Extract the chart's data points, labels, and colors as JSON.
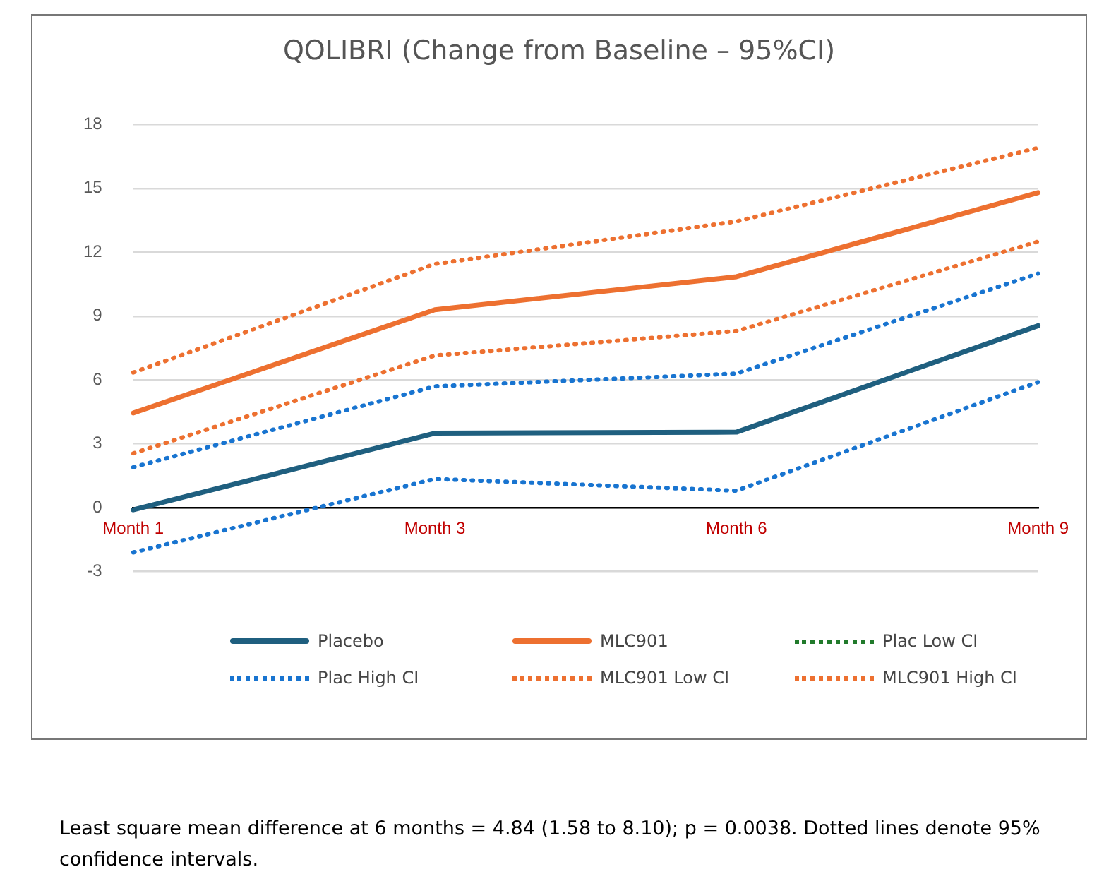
{
  "chart_data": {
    "type": "line",
    "title": "QOLIBRI (Change from Baseline – 95%CI)",
    "categories": [
      "Month 1",
      "Month 3",
      "Month 6",
      "Month 9"
    ],
    "series": [
      {
        "name": "Placebo",
        "color": "#1f5f7f",
        "line_style": "solid",
        "values": [
          -0.1,
          3.5,
          3.55,
          8.55
        ]
      },
      {
        "name": "MLC901",
        "color": "#ed7030",
        "line_style": "solid",
        "values": [
          4.45,
          9.3,
          10.85,
          14.8
        ]
      },
      {
        "name": "Plac Low CI",
        "color": "#217a2b",
        "line_style": "dotted",
        "values": [
          null,
          null,
          null,
          null
        ]
      },
      {
        "name": "Plac High CI",
        "color": "#1874d0",
        "line_style": "dotted",
        "values": [
          1.9,
          5.7,
          6.3,
          11.0
        ]
      },
      {
        "name": "MLC901 Low CI",
        "color": "#ed7030",
        "line_style": "dotted",
        "values": [
          2.55,
          7.15,
          8.3,
          12.5
        ]
      },
      {
        "name": "MLC901 High CI",
        "color": "#ed7030",
        "line_style": "dotted",
        "values": [
          6.35,
          11.45,
          13.45,
          16.9
        ]
      },
      {
        "color": "#1874d0",
        "line_style": "dotted",
        "values": [
          -2.1,
          1.35,
          0.8,
          5.9
        ]
      }
    ],
    "ylim": [
      -3,
      18
    ],
    "yticks": [
      -3,
      0,
      3,
      6,
      9,
      12,
      15,
      18
    ],
    "grid": "y",
    "legend": "bottom",
    "marker": "none",
    "annotations": [
      "Least square mean difference at 6 months = 4.84 (1.58 to 8.10); p = 0.0038. Dotted lines denote 95% confidence intervals."
    ]
  }
}
